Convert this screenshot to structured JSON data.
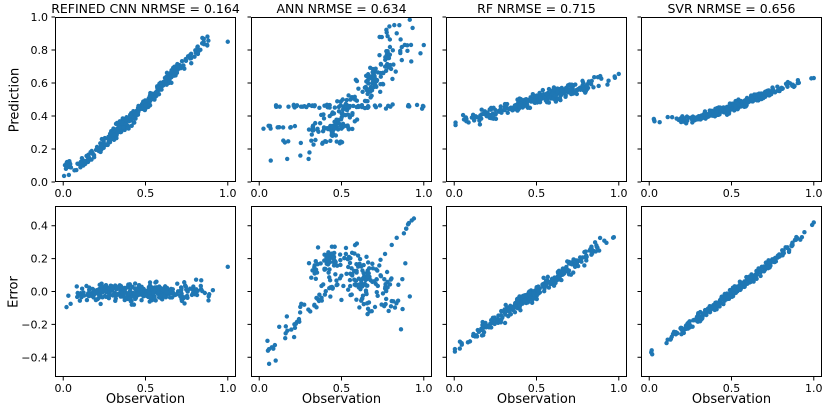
{
  "style": {
    "point_color": "#1f77b4",
    "spine_color": "#000000",
    "tick_color": "#000000",
    "background": "#ffffff",
    "point_radius": 2.2
  },
  "chart_data": [
    {
      "id": "refined-cnn-prediction",
      "type": "scatter",
      "title": "REFINED CNN NRMSE = 0.164",
      "model": "REFINED CNN",
      "nrmse": 0.164,
      "ylabel": "Prediction",
      "xlim": [
        -0.05,
        1.05
      ],
      "ylim": [
        0.0,
        1.0
      ],
      "xticks": {
        "values": [
          0.0,
          0.5,
          1.0
        ],
        "labels": [
          "0.0",
          "0.5",
          "1.0"
        ],
        "show_labels": true
      },
      "yticks": {
        "values": [
          0.0,
          0.2,
          0.4,
          0.6,
          0.8,
          1.0
        ],
        "labels": [
          "0.0",
          "0.2",
          "0.4",
          "0.6",
          "0.8",
          "1.0"
        ],
        "show_labels": true
      },
      "grid": false,
      "series": [
        {
          "name": "main-diagonal",
          "seed": 11,
          "n": 330,
          "xdist": "tri",
          "xmin": 0.0,
          "xmax": 0.92,
          "curve": [
            [
              0.0,
              0.05
            ],
            [
              0.1,
              0.1
            ],
            [
              0.3,
              0.28
            ],
            [
              0.5,
              0.47
            ],
            [
              0.7,
              0.7
            ],
            [
              0.92,
              0.9
            ]
          ],
          "jitter": 0.04
        },
        {
          "name": "low-left-cluster",
          "seed": 12,
          "n": 10,
          "xdist": "uni",
          "xmin": 0.0,
          "xmax": 0.07,
          "curve": [
            [
              0.0,
              0.105
            ],
            [
              0.07,
              0.115
            ]
          ],
          "jitter": 0.03
        }
      ],
      "points": [
        [
          1.0,
          0.85
        ],
        [
          0.005,
          0.037
        ]
      ]
    },
    {
      "id": "ann-prediction",
      "type": "scatter",
      "title": "ANN NRMSE = 0.634",
      "model": "ANN",
      "nrmse": 0.634,
      "xlim": [
        -0.05,
        1.05
      ],
      "ylim": [
        0.0,
        1.0
      ],
      "xticks": {
        "values": [
          0.0,
          0.5,
          1.0
        ],
        "labels": [
          "0.0",
          "0.5",
          "1.0"
        ],
        "show_labels": true
      },
      "yticks": {
        "values": [
          0.0,
          0.2,
          0.4,
          0.6,
          0.8,
          1.0
        ],
        "labels": [
          "0.0",
          "0.2",
          "0.4",
          "0.6",
          "0.8",
          "1.0"
        ],
        "show_labels": false
      },
      "grid": false,
      "series": [
        {
          "name": "rising-cloud",
          "seed": 21,
          "n": 175,
          "xdist": "tri",
          "xmin": 0.25,
          "xmax": 0.97,
          "curve": [
            [
              0.25,
              0.3
            ],
            [
              0.45,
              0.34
            ],
            [
              0.55,
              0.44
            ],
            [
              0.7,
              0.62
            ],
            [
              0.85,
              0.8
            ],
            [
              0.97,
              0.88
            ]
          ],
          "jitter": 0.12
        },
        {
          "name": "saturation-band-0.46",
          "seed": 22,
          "n": 55,
          "xdist": "uni",
          "xmin": 0.1,
          "xmax": 1.0,
          "curve": [
            [
              0.0,
              0.46
            ],
            [
              1.0,
              0.46
            ]
          ],
          "jitter": 0.012
        },
        {
          "name": "saturation-band-0.33",
          "seed": 23,
          "n": 24,
          "xdist": "uni",
          "xmin": 0.02,
          "xmax": 0.55,
          "curve": [
            [
              0.0,
              0.33
            ],
            [
              1.0,
              0.33
            ]
          ],
          "jitter": 0.012
        },
        {
          "name": "saturation-band-0.24",
          "seed": 24,
          "n": 14,
          "xdist": "uni",
          "xmin": 0.12,
          "xmax": 0.52,
          "curve": [
            [
              0.0,
              0.24
            ],
            [
              1.0,
              0.24
            ]
          ],
          "jitter": 0.02
        },
        {
          "name": "top-right-cluster",
          "seed": 25,
          "n": 12,
          "xdist": "uni",
          "xmin": 0.72,
          "xmax": 0.94,
          "curve": [
            [
              0.7,
              0.9
            ],
            [
              0.95,
              0.93
            ]
          ],
          "jitter": 0.05
        }
      ],
      "points": [
        [
          0.07,
          0.13
        ],
        [
          0.17,
          0.14
        ],
        [
          0.3,
          0.14
        ],
        [
          0.25,
          0.16
        ],
        [
          0.98,
          0.78
        ],
        [
          1.0,
          0.83
        ]
      ]
    },
    {
      "id": "rf-prediction",
      "type": "scatter",
      "title": "RF NRMSE = 0.715",
      "model": "RF",
      "nrmse": 0.715,
      "xlim": [
        -0.05,
        1.05
      ],
      "ylim": [
        0.0,
        1.0
      ],
      "xticks": {
        "values": [
          0.0,
          0.5,
          1.0
        ],
        "labels": [
          "0.0",
          "0.5",
          "1.0"
        ],
        "show_labels": true
      },
      "yticks": {
        "values": [
          0.0,
          0.2,
          0.4,
          0.6,
          0.8,
          1.0
        ],
        "labels": [
          "0.0",
          "0.2",
          "0.4",
          "0.6",
          "0.8",
          "1.0"
        ],
        "show_labels": false
      },
      "grid": false,
      "series": [
        {
          "name": "shallow-band",
          "seed": 31,
          "n": 300,
          "xdist": "tri",
          "xmin": 0.02,
          "xmax": 0.99,
          "curve": [
            [
              0.0,
              0.35
            ],
            [
              0.25,
              0.42
            ],
            [
              0.5,
              0.5
            ],
            [
              0.75,
              0.57
            ],
            [
              1.0,
              0.63
            ]
          ],
          "jitter": 0.04
        }
      ],
      "points": [
        [
          1.0,
          0.655
        ],
        [
          0.975,
          0.64
        ],
        [
          0.008,
          0.36
        ],
        [
          0.008,
          0.345
        ]
      ]
    },
    {
      "id": "svr-prediction",
      "type": "scatter",
      "title": "SVR NRMSE = 0.656",
      "model": "SVR",
      "nrmse": 0.656,
      "xlim": [
        -0.05,
        1.05
      ],
      "ylim": [
        0.0,
        1.0
      ],
      "xticks": {
        "values": [
          0.0,
          0.5,
          1.0
        ],
        "labels": [
          "0.0",
          "0.5",
          "1.0"
        ],
        "show_labels": true
      },
      "yticks": {
        "values": [
          0.0,
          0.2,
          0.4,
          0.6,
          0.8,
          1.0
        ],
        "labels": [
          "0.0",
          "0.2",
          "0.4",
          "0.6",
          "0.8",
          "1.0"
        ],
        "show_labels": false
      },
      "grid": false,
      "series": [
        {
          "name": "sigmoid-band",
          "seed": 41,
          "n": 320,
          "xdist": "tri",
          "xmin": 0.05,
          "xmax": 0.97,
          "curve": [
            [
              0.05,
              0.375
            ],
            [
              0.15,
              0.365
            ],
            [
              0.3,
              0.39
            ],
            [
              0.5,
              0.45
            ],
            [
              0.7,
              0.53
            ],
            [
              0.85,
              0.585
            ],
            [
              0.97,
              0.615
            ]
          ],
          "jitter": 0.025
        }
      ],
      "points": [
        [
          1.0,
          0.63
        ],
        [
          0.985,
          0.628
        ],
        [
          0.03,
          0.375
        ],
        [
          0.032,
          0.368
        ],
        [
          0.028,
          0.382
        ]
      ]
    },
    {
      "id": "refined-cnn-error",
      "type": "scatter",
      "model": "REFINED CNN",
      "ylabel": "Error",
      "xlabel": "Observation",
      "xlim": [
        -0.05,
        1.05
      ],
      "ylim": [
        -0.52,
        0.52
      ],
      "xticks": {
        "values": [
          0.0,
          0.5,
          1.0
        ],
        "labels": [
          "0.0",
          "0.5",
          "1.0"
        ],
        "show_labels": true
      },
      "yticks": {
        "values": [
          -0.4,
          -0.2,
          0.0,
          0.2,
          0.4
        ],
        "labels": [
          "−0.4",
          "−0.2",
          "0.0",
          "0.2",
          "0.4"
        ],
        "show_labels": true
      },
      "grid": false,
      "series": [
        {
          "name": "flat-band",
          "seed": 51,
          "n": 330,
          "xdist": "tri",
          "xmin": 0.0,
          "xmax": 0.92,
          "curve": [
            [
              0.0,
              -0.045
            ],
            [
              0.12,
              -0.01
            ],
            [
              0.3,
              0.0
            ],
            [
              0.6,
              -0.005
            ],
            [
              0.92,
              0.0
            ]
          ],
          "jitter": 0.055
        }
      ],
      "points": [
        [
          1.0,
          0.15
        ],
        [
          0.02,
          -0.095
        ],
        [
          0.045,
          -0.075
        ]
      ]
    },
    {
      "id": "ann-error",
      "type": "scatter",
      "model": "ANN",
      "xlabel": "Observation",
      "xlim": [
        -0.05,
        1.05
      ],
      "ylim": [
        -0.52,
        0.52
      ],
      "xticks": {
        "values": [
          0.0,
          0.5,
          1.0
        ],
        "labels": [
          "0.0",
          "0.5",
          "1.0"
        ],
        "show_labels": true
      },
      "yticks": {
        "values": [
          -0.4,
          -0.2,
          0.0,
          0.2,
          0.4
        ],
        "labels": [
          "−0.4",
          "−0.2",
          "0.0",
          "0.2",
          "0.4"
        ],
        "show_labels": false
      },
      "grid": false,
      "series": [
        {
          "name": "wide-cloud",
          "seed": 61,
          "n": 150,
          "xdist": "tri",
          "xmin": 0.3,
          "xmax": 0.95,
          "curve": [
            [
              0.3,
              0.05
            ],
            [
              0.45,
              0.12
            ],
            [
              0.55,
              0.1
            ],
            [
              0.7,
              0.02
            ],
            [
              0.95,
              -0.03
            ]
          ],
          "jitter": 0.18
        },
        {
          "name": "hump",
          "seed": 62,
          "n": 45,
          "xdist": "tri",
          "xmin": 0.28,
          "xmax": 0.58,
          "curve": [
            [
              0.28,
              0.1
            ],
            [
              0.45,
              0.19
            ],
            [
              0.58,
              0.16
            ]
          ],
          "jitter": 0.07
        },
        {
          "name": "rising-streak-left",
          "seed": 63,
          "n": 28,
          "xdist": "uni",
          "xmin": 0.05,
          "xmax": 0.5,
          "curve": [
            [
              0.05,
              -0.37
            ],
            [
              0.5,
              0.08
            ]
          ],
          "jitter": 0.02
        },
        {
          "name": "rising-streak-right",
          "seed": 64,
          "n": 18,
          "xdist": "uni",
          "xmin": 0.58,
          "xmax": 0.95,
          "curve": [
            [
              0.58,
              0.02
            ],
            [
              0.95,
              0.45
            ]
          ],
          "jitter": 0.018
        },
        {
          "name": "low-left-scatter",
          "seed": 65,
          "n": 10,
          "xdist": "uni",
          "xmin": 0.1,
          "xmax": 0.3,
          "curve": [
            [
              0.1,
              -0.25
            ],
            [
              0.3,
              -0.12
            ]
          ],
          "jitter": 0.1
        }
      ],
      "points": [
        [
          0.06,
          -0.44
        ],
        [
          0.1,
          -0.42
        ],
        [
          0.05,
          -0.3
        ]
      ]
    },
    {
      "id": "rf-error",
      "type": "scatter",
      "model": "RF",
      "xlabel": "Observation",
      "xlim": [
        -0.05,
        1.05
      ],
      "ylim": [
        -0.52,
        0.52
      ],
      "xticks": {
        "values": [
          0.0,
          0.5,
          1.0
        ],
        "labels": [
          "0.0",
          "0.5",
          "1.0"
        ],
        "show_labels": true
      },
      "yticks": {
        "values": [
          -0.4,
          -0.2,
          0.0,
          0.2,
          0.4
        ],
        "labels": [
          "−0.4",
          "−0.2",
          "0.0",
          "0.2",
          "0.4"
        ],
        "show_labels": false
      },
      "grid": false,
      "series": [
        {
          "name": "diagonal-band",
          "seed": 71,
          "n": 300,
          "xdist": "tri",
          "xmin": 0.02,
          "xmax": 1.0,
          "curve": [
            [
              0.0,
              -0.35
            ],
            [
              0.5,
              0.0
            ],
            [
              1.0,
              0.36
            ]
          ],
          "jitter": 0.04
        }
      ],
      "points": [
        [
          0.004,
          -0.35
        ],
        [
          0.004,
          -0.365
        ],
        [
          0.97,
          0.33
        ]
      ]
    },
    {
      "id": "svr-error",
      "type": "scatter",
      "model": "SVR",
      "xlabel": "Observation",
      "xlim": [
        -0.05,
        1.05
      ],
      "ylim": [
        -0.52,
        0.52
      ],
      "xticks": {
        "values": [
          0.0,
          0.5,
          1.0
        ],
        "labels": [
          "0.0",
          "0.5",
          "1.0"
        ],
        "show_labels": true
      },
      "yticks": {
        "values": [
          -0.4,
          -0.2,
          0.0,
          0.2,
          0.4
        ],
        "labels": [
          "−0.4",
          "−0.2",
          "0.0",
          "0.2",
          "0.4"
        ],
        "show_labels": false
      },
      "grid": false,
      "series": [
        {
          "name": "tight-diagonal",
          "seed": 81,
          "n": 320,
          "xdist": "tri",
          "xmin": 0.05,
          "xmax": 0.97,
          "curve": [
            [
              0.05,
              -0.335
            ],
            [
              0.3,
              -0.16
            ],
            [
              0.5,
              -0.01
            ],
            [
              0.7,
              0.14
            ],
            [
              0.97,
              0.37
            ]
          ],
          "jitter": 0.028
        }
      ],
      "points": [
        [
          1.0,
          0.42
        ],
        [
          0.99,
          0.405
        ],
        [
          0.012,
          -0.37
        ],
        [
          0.015,
          -0.358
        ],
        [
          0.018,
          -0.382
        ]
      ]
    }
  ]
}
